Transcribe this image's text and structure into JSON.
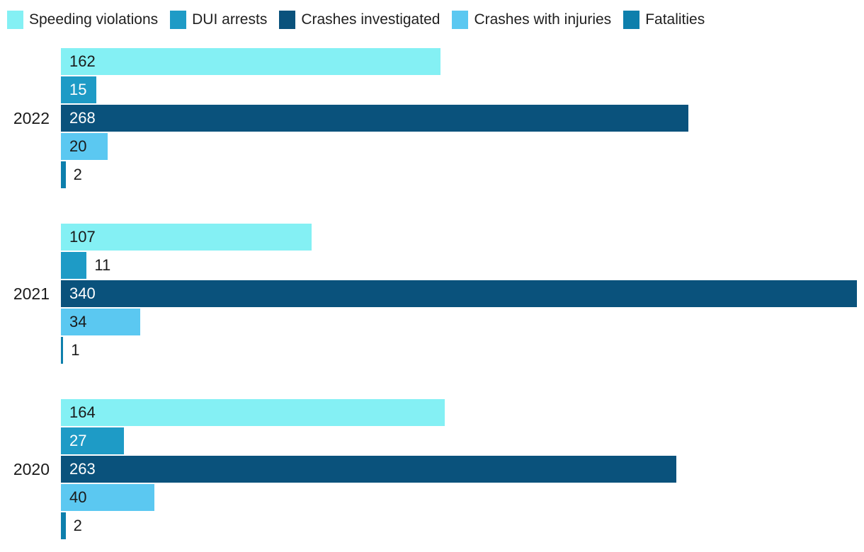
{
  "chart_data": {
    "type": "bar",
    "orientation": "horizontal",
    "legend_position": "top",
    "background": "#ffffff",
    "text_color": "#1a1a1a",
    "max_value": 340,
    "series": [
      {
        "name": "Speeding violations",
        "color": "#84F0F4",
        "text_on_bar": "#1a1a1a"
      },
      {
        "name": "DUI arrests",
        "color": "#1E9BC6",
        "text_on_bar": "#ffffff"
      },
      {
        "name": "Crashes investigated",
        "color": "#0A527C",
        "text_on_bar": "#ffffff"
      },
      {
        "name": "Crashes with injuries",
        "color": "#5BC8F1",
        "text_on_bar": "#1a1a1a"
      },
      {
        "name": "Fatalities",
        "color": "#0D7FAC",
        "text_on_bar": "#ffffff"
      }
    ],
    "categories": [
      "2022",
      "2021",
      "2020"
    ],
    "groups": [
      {
        "year": "2022",
        "values": [
          162,
          15,
          268,
          20,
          2
        ]
      },
      {
        "year": "2021",
        "values": [
          107,
          11,
          340,
          34,
          1
        ]
      },
      {
        "year": "2020",
        "values": [
          164,
          27,
          263,
          40,
          2
        ]
      }
    ]
  }
}
